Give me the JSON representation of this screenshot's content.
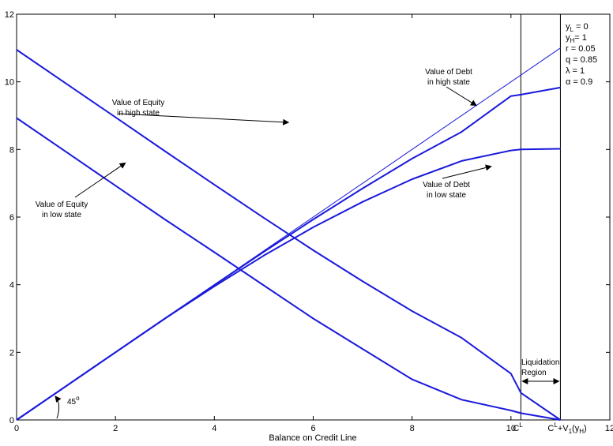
{
  "chart_data": {
    "type": "line",
    "xlabel": "Balance on Credit Line",
    "ylabel": "",
    "xlim": [
      0,
      12
    ],
    "ylim": [
      0,
      12
    ],
    "x_ticks": [
      "0",
      "2",
      "4",
      "6",
      "8",
      "10",
      "12"
    ],
    "y_ticks": [
      "0",
      "2",
      "4",
      "6",
      "8",
      "10",
      "12"
    ],
    "grid": false,
    "colors": {
      "series": "#1a1adb",
      "axes": "#000000"
    },
    "series": [
      {
        "name": "45-degree line",
        "width": 1,
        "points": [
          [
            0,
            0
          ],
          [
            11,
            11
          ]
        ]
      },
      {
        "name": "Value of Debt in high state",
        "width": 2,
        "points": [
          [
            0,
            0
          ],
          [
            1,
            1
          ],
          [
            2,
            2
          ],
          [
            3,
            3
          ],
          [
            4,
            3.99
          ],
          [
            5,
            4.97
          ],
          [
            6,
            5.93
          ],
          [
            7,
            6.85
          ],
          [
            8,
            7.73
          ],
          [
            9,
            8.52
          ],
          [
            10,
            9.58
          ],
          [
            10.2,
            9.62
          ],
          [
            11,
            9.83
          ]
        ]
      },
      {
        "name": "Value of Debt in low state",
        "width": 2,
        "points": [
          [
            0,
            0
          ],
          [
            1,
            1
          ],
          [
            2,
            2
          ],
          [
            3,
            3
          ],
          [
            4,
            3.95
          ],
          [
            5,
            4.86
          ],
          [
            6,
            5.7
          ],
          [
            7,
            6.45
          ],
          [
            8,
            7.12
          ],
          [
            9,
            7.66
          ],
          [
            10,
            7.97
          ],
          [
            10.2,
            8.0
          ],
          [
            11,
            8.02
          ]
        ]
      },
      {
        "name": "Value of Equity in high state",
        "width": 2,
        "points": [
          [
            0,
            10.95
          ],
          [
            1,
            9.95
          ],
          [
            2,
            8.95
          ],
          [
            3,
            7.95
          ],
          [
            4,
            6.96
          ],
          [
            5,
            5.98
          ],
          [
            6,
            5.02
          ],
          [
            7,
            4.1
          ],
          [
            8,
            3.22
          ],
          [
            9,
            2.43
          ],
          [
            10,
            1.37
          ],
          [
            10.2,
            0.8
          ],
          [
            11,
            0
          ]
        ]
      },
      {
        "name": "Value of Equity in low state",
        "width": 2,
        "points": [
          [
            0,
            8.93
          ],
          [
            1,
            7.93
          ],
          [
            2,
            6.93
          ],
          [
            3,
            5.93
          ],
          [
            4,
            4.96
          ],
          [
            5,
            3.98
          ],
          [
            6,
            3.0
          ],
          [
            7,
            2.1
          ],
          [
            8,
            1.2
          ],
          [
            9,
            0.6
          ],
          [
            10,
            0.28
          ],
          [
            10.2,
            0.2
          ],
          [
            11,
            0
          ]
        ]
      }
    ],
    "vertical_lines": [
      {
        "x": 10.2,
        "label_main": "C",
        "label_sup": "L"
      },
      {
        "x": 11,
        "label_main": "C",
        "label_sup": "L",
        "label_tail": "+V",
        "label_sub": "1",
        "label_paren": "(y",
        "label_sub2": "H",
        "label_close": ")"
      }
    ],
    "annotations": [
      {
        "lines": [
          "Value of Equity",
          "in high state"
        ],
        "point": [
          5.5,
          8.8
        ]
      },
      {
        "lines": [
          "Value of Equity",
          "in low state"
        ],
        "point": [
          2.2,
          7.6
        ]
      },
      {
        "lines": [
          "Value of Debt",
          "in high state"
        ],
        "point": [
          9.3,
          9.3
        ]
      },
      {
        "lines": [
          "Value of Debt",
          "in low state"
        ],
        "point": [
          9.6,
          7.5
        ]
      },
      {
        "lines": [
          "Liquidation",
          "Region"
        ]
      },
      {
        "lines": [
          "45",
          "o"
        ]
      }
    ],
    "params": [
      {
        "sym": "y",
        "sub": "L",
        "rest": " = 0"
      },
      {
        "sym": "y",
        "sub": "H",
        "rest": "= 1"
      },
      {
        "sym": "r",
        "sub": "",
        "rest": " = 0.05"
      },
      {
        "sym": "q",
        "sub": "",
        "rest": " = 0.85"
      },
      {
        "sym": "λ",
        "sub": "",
        "rest": " = 1"
      },
      {
        "sym": "α",
        "sub": "",
        "rest": " = 0.9"
      }
    ]
  }
}
